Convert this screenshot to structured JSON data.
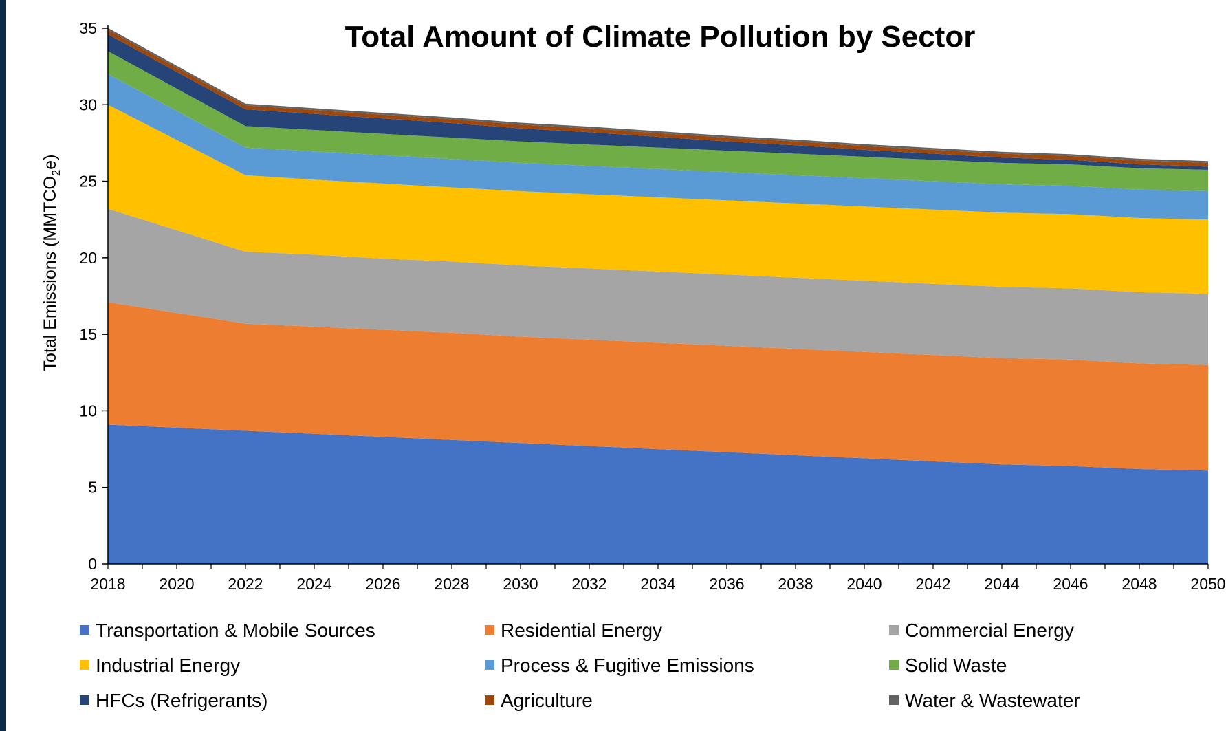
{
  "chart_data": {
    "type": "area",
    "stacked": true,
    "title": "Total Amount of Climate Pollution by Sector",
    "ylabel_prefix": "Total Emissions (MMTCO",
    "ylabel_sub": "2",
    "ylabel_suffix": "e)",
    "xlabel": "",
    "ylim": [
      0,
      35
    ],
    "y_ticks": [
      0,
      5,
      10,
      15,
      20,
      25,
      30,
      35
    ],
    "x": [
      2018,
      2022,
      2024,
      2026,
      2028,
      2030,
      2032,
      2034,
      2036,
      2038,
      2040,
      2042,
      2044,
      2046,
      2048,
      2050
    ],
    "x_tick_labels": [
      "2018",
      "2020",
      "2022",
      "2024",
      "2026",
      "2028",
      "2030",
      "2032",
      "2034",
      "2036",
      "2038",
      "2040",
      "2042",
      "2044",
      "2046",
      "2048",
      "2050"
    ],
    "grid": false,
    "legend_position": "bottom",
    "series": [
      {
        "name": "Transportation & Mobile Sources",
        "color": "#4472C4",
        "values": [
          9.1,
          8.7,
          8.5,
          8.3,
          8.1,
          7.9,
          7.7,
          7.5,
          7.3,
          7.1,
          6.9,
          6.7,
          6.5,
          6.4,
          6.2,
          6.1
        ]
      },
      {
        "name": "Residential Energy",
        "color": "#ED7D31",
        "values": [
          8.0,
          7.0,
          7.0,
          7.0,
          7.0,
          6.95,
          6.95,
          6.95,
          6.95,
          6.95,
          6.95,
          6.95,
          6.95,
          6.95,
          6.9,
          6.9
        ]
      },
      {
        "name": "Commercial Energy",
        "color": "#A5A5A5",
        "values": [
          6.1,
          4.7,
          4.7,
          4.65,
          4.65,
          4.65,
          4.65,
          4.65,
          4.65,
          4.65,
          4.65,
          4.65,
          4.65,
          4.65,
          4.65,
          4.65
        ]
      },
      {
        "name": "Industrial Energy",
        "color": "#FFC000",
        "values": [
          6.8,
          5.0,
          4.9,
          4.9,
          4.85,
          4.85,
          4.85,
          4.85,
          4.85,
          4.85,
          4.85,
          4.85,
          4.85,
          4.85,
          4.85,
          4.85
        ]
      },
      {
        "name": "Process & Fugitive Emissions",
        "color": "#5B9BD5",
        "values": [
          2.0,
          1.8,
          1.85,
          1.85,
          1.85,
          1.85,
          1.85,
          1.85,
          1.85,
          1.85,
          1.85,
          1.85,
          1.85,
          1.85,
          1.85,
          1.85
        ]
      },
      {
        "name": "Solid Waste",
        "color": "#70AD47",
        "values": [
          1.5,
          1.4,
          1.4,
          1.4,
          1.4,
          1.4,
          1.4,
          1.4,
          1.4,
          1.4,
          1.4,
          1.4,
          1.4,
          1.4,
          1.4,
          1.4
        ]
      },
      {
        "name": "HFCs (Refrigerants)",
        "color": "#264478",
        "values": [
          1.1,
          1.1,
          1.05,
          1.0,
          0.95,
          0.85,
          0.8,
          0.7,
          0.6,
          0.55,
          0.45,
          0.4,
          0.35,
          0.3,
          0.25,
          0.2
        ]
      },
      {
        "name": "Agriculture",
        "color": "#9E480E",
        "values": [
          0.3,
          0.25,
          0.25,
          0.25,
          0.25,
          0.25,
          0.25,
          0.25,
          0.25,
          0.25,
          0.25,
          0.25,
          0.25,
          0.25,
          0.25,
          0.25
        ]
      },
      {
        "name": "Water & Wastewater",
        "color": "#636363",
        "values": [
          0.12,
          0.12,
          0.12,
          0.12,
          0.12,
          0.12,
          0.12,
          0.12,
          0.12,
          0.12,
          0.12,
          0.12,
          0.12,
          0.12,
          0.12,
          0.12
        ]
      }
    ]
  }
}
